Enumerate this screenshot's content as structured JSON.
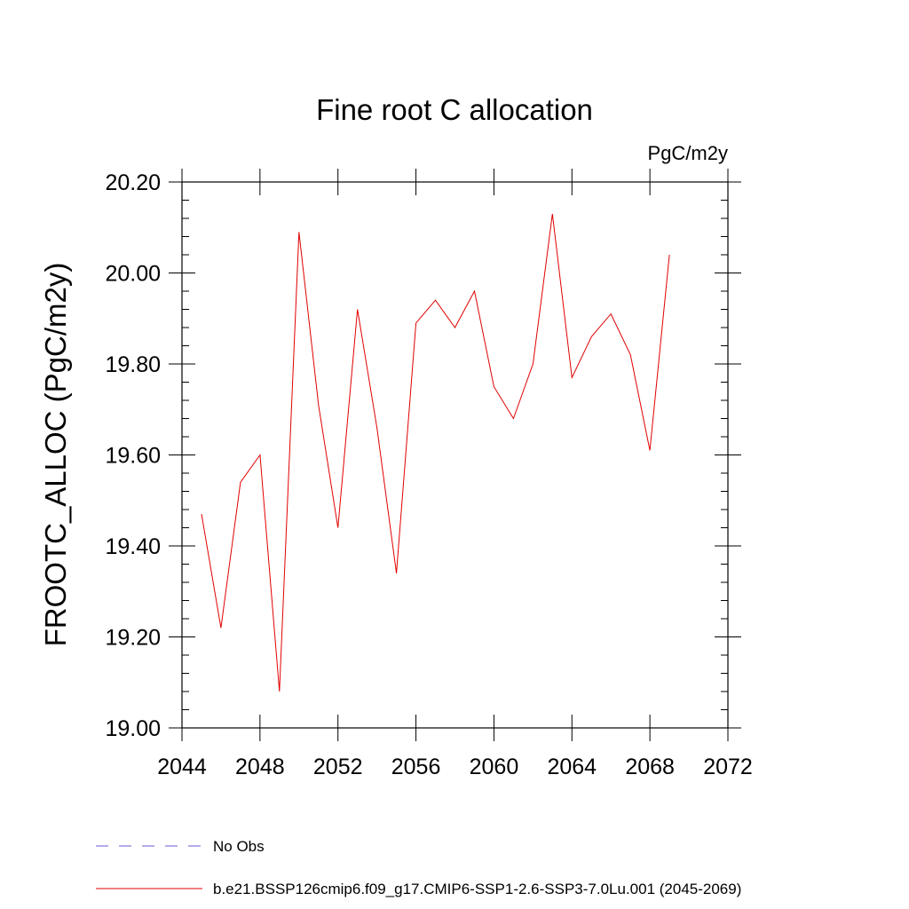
{
  "chart_data": {
    "type": "line",
    "title": "Fine root C allocation",
    "units": "PgC/m2y",
    "ylabel": "FROOTC_ALLOC  (PgC/m2y)",
    "xlabel": "",
    "xlim": [
      2044,
      2072
    ],
    "ylim": [
      19.0,
      20.2
    ],
    "x_ticks": [
      2044,
      2048,
      2052,
      2056,
      2060,
      2064,
      2068,
      2072
    ],
    "x_tick_labels": [
      "2044",
      "2048",
      "2052",
      "2056",
      "2060",
      "2064",
      "2068",
      "2072"
    ],
    "y_ticks": [
      19.0,
      19.2,
      19.4,
      19.6,
      19.8,
      20.0,
      20.2
    ],
    "y_tick_labels": [
      "19.00",
      "19.20",
      "19.40",
      "19.60",
      "19.80",
      "20.00",
      "20.20"
    ],
    "grid": false,
    "legend_position": "bottom",
    "series": [
      {
        "name": "b.e21.BSSP126cmip6.f09_g17.CMIP6-SSP1-2.6-SSP3-7.0Lu.001 (2045-2069)",
        "color": "#e00000",
        "dash": "solid",
        "x": [
          2045,
          2046,
          2047,
          2048,
          2049,
          2050,
          2051,
          2052,
          2053,
          2054,
          2055,
          2056,
          2057,
          2058,
          2059,
          2060,
          2061,
          2062,
          2063,
          2064,
          2065,
          2066,
          2067,
          2068,
          2069
        ],
        "y": [
          19.47,
          19.22,
          19.54,
          19.6,
          19.08,
          20.09,
          19.71,
          19.44,
          19.92,
          19.66,
          19.34,
          19.89,
          19.94,
          19.88,
          19.96,
          19.75,
          19.68,
          19.8,
          20.13,
          19.77,
          19.86,
          19.91,
          19.82,
          19.61,
          20.04
        ]
      }
    ],
    "legend": [
      {
        "label": "No Obs",
        "color": "#6a5acd",
        "dash": "dashed"
      },
      {
        "label": "b.e21.BSSP126cmip6.f09_g17.CMIP6-SSP1-2.6-SSP3-7.0Lu.001 (2045-2069)",
        "color": "#e00000",
        "dash": "solid"
      }
    ]
  }
}
